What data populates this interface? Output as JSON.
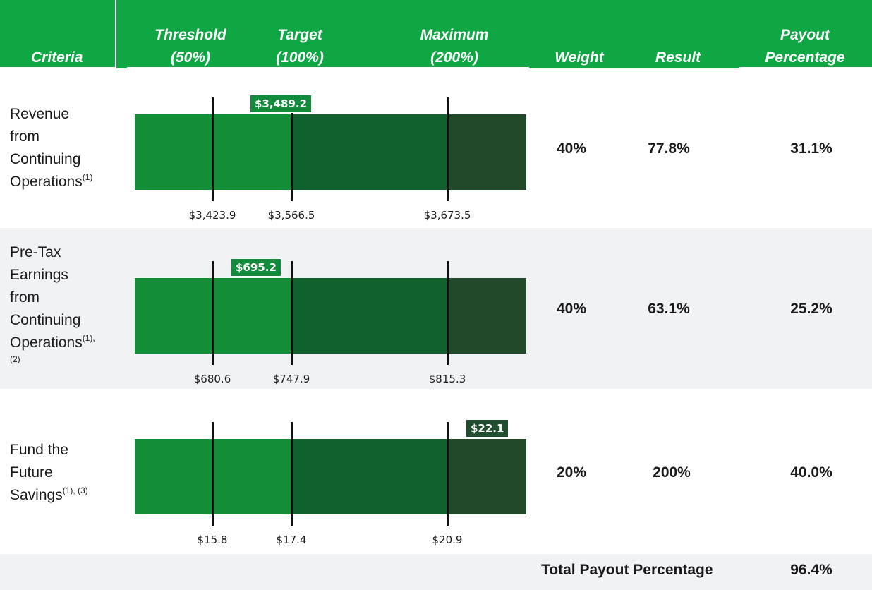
{
  "header": {
    "criteria": "Criteria",
    "threshold_line1": "Threshold",
    "threshold_line2": "(50%)",
    "target_line1": "Target",
    "target_line2": "(100%)",
    "maximum_line1": "Maximum",
    "maximum_line2": "(200%)",
    "weight": "Weight",
    "result": "Result",
    "payout_line1": "Payout",
    "payout_line2": "Percentage"
  },
  "colors": {
    "header_green": "#0ea743",
    "segment_threshold": "#138e36",
    "segment_target": "#10612d",
    "segment_maximum": "#224a2a",
    "row_band": "#f1f2f4"
  },
  "chart_data": {
    "type": "bar",
    "rows": [
      {
        "criteria_lines": [
          "Revenue",
          "from",
          "Continuing",
          "Operations"
        ],
        "criteria_sup": "(1)",
        "threshold": 3423.9,
        "target": 3566.5,
        "maximum": 3673.5,
        "threshold_label": "$3,423.9",
        "target_label": "$3,566.5",
        "maximum_label": "$3,673.5",
        "actual": 3489.2,
        "actual_label": "$3,489.2",
        "weight": "40%",
        "result": "77.8%",
        "payout": "31.1%"
      },
      {
        "criteria_lines": [
          "Pre-Tax",
          "Earnings",
          "from",
          "Continuing",
          "Operations"
        ],
        "criteria_sup": "(1),",
        "criteria_sup2": "(2)",
        "threshold": 680.6,
        "target": 747.9,
        "maximum": 815.3,
        "threshold_label": "$680.6",
        "target_label": "$747.9",
        "maximum_label": "$815.3",
        "actual": 695.2,
        "actual_label": "$695.2",
        "weight": "40%",
        "result": "63.1%",
        "payout": "25.2%"
      },
      {
        "criteria_lines": [
          "Fund the",
          "Future",
          "Savings"
        ],
        "criteria_sup": "(1), (3)",
        "threshold": 15.8,
        "target": 17.4,
        "maximum": 20.9,
        "threshold_label": "$15.8",
        "target_label": "$17.4",
        "maximum_label": "$20.9",
        "actual": 22.1,
        "actual_label": "$22.1",
        "weight": "20%",
        "result": "200%",
        "payout": "40.0%"
      }
    ],
    "total": {
      "label": "Total Payout Percentage",
      "value": "96.4%"
    }
  }
}
